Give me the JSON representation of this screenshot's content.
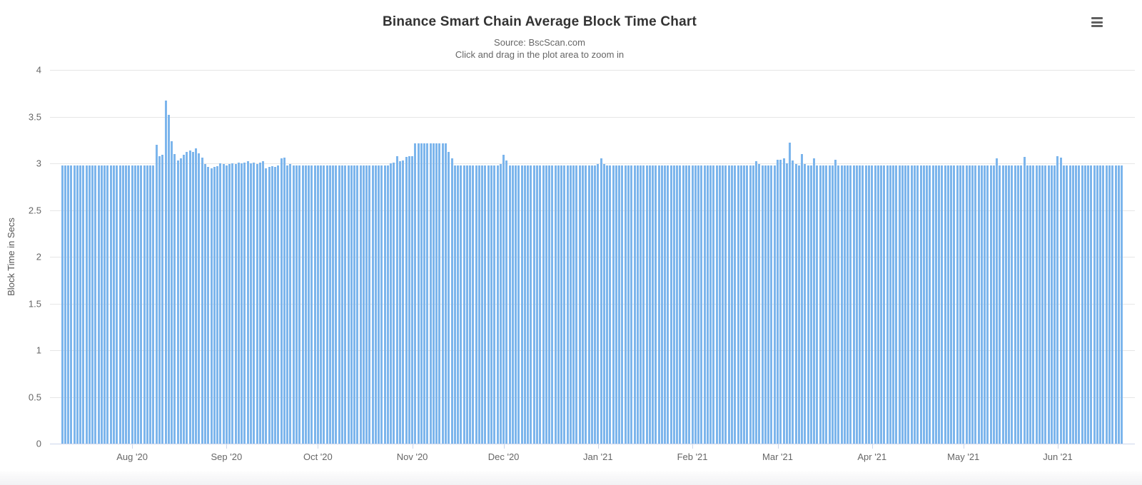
{
  "header": {
    "title": "Binance Smart Chain Average Block Time Chart",
    "subtitle_source": "Source: BscScan.com",
    "subtitle_hint": "Click and drag in the plot area to zoom in"
  },
  "export_menu": {
    "icon": "hamburger-menu-icon"
  },
  "colors": {
    "bar": "#7cb5ec",
    "grid": "#e6e6e6",
    "axis_line": "#ccd6eb",
    "label": "#666666",
    "title": "#333333"
  },
  "chart_data": {
    "type": "bar",
    "title": "Binance Smart Chain Average Block Time Chart",
    "subtitle": [
      "Source: BscScan.com",
      "Click and drag in the plot area to zoom in"
    ],
    "xlabel": "",
    "ylabel": "Block Time in Secs",
    "ylim": [
      0,
      4
    ],
    "grid": true,
    "legend": "none",
    "yticks": [
      "0",
      "0.5",
      "1",
      "1.5",
      "2",
      "2.5",
      "3",
      "3.5",
      "4"
    ],
    "x_unit": "day",
    "start_date": "2020-07-09",
    "end_date": "2021-06-22",
    "month_ticks": [
      {
        "label": "Aug '20",
        "day_index": 23
      },
      {
        "label": "Sep '20",
        "day_index": 54
      },
      {
        "label": "Oct '20",
        "day_index": 84
      },
      {
        "label": "Nov '20",
        "day_index": 115
      },
      {
        "label": "Dec '20",
        "day_index": 145
      },
      {
        "label": "Jan '21",
        "day_index": 176
      },
      {
        "label": "Feb '21",
        "day_index": 207
      },
      {
        "label": "Mar '21",
        "day_index": 235
      },
      {
        "label": "Apr '21",
        "day_index": 266
      },
      {
        "label": "May '21",
        "day_index": 296
      },
      {
        "label": "Jun '21",
        "day_index": 327
      }
    ],
    "values": [
      2.98,
      2.98,
      2.98,
      2.98,
      2.98,
      2.98,
      2.98,
      2.98,
      2.98,
      2.98,
      2.98,
      2.98,
      2.98,
      2.98,
      2.98,
      2.98,
      2.98,
      2.98,
      2.98,
      2.98,
      2.98,
      2.98,
      2.98,
      2.98,
      2.98,
      2.98,
      2.98,
      2.98,
      2.98,
      2.98,
      2.98,
      3.2,
      3.08,
      3.09,
      3.67,
      3.52,
      3.24,
      3.1,
      3.03,
      3.05,
      3.09,
      3.12,
      3.14,
      3.12,
      3.16,
      3.11,
      3.06,
      2.99,
      2.96,
      2.95,
      2.96,
      2.97,
      3.0,
      2.99,
      2.98,
      2.99,
      3.0,
      2.99,
      3.01,
      3.0,
      3.01,
      3.02,
      3.0,
      3.01,
      2.99,
      3.01,
      3.02,
      2.95,
      2.96,
      2.97,
      2.96,
      2.98,
      3.05,
      3.06,
      2.98,
      2.99,
      2.98,
      2.98,
      2.98,
      2.98,
      2.98,
      2.98,
      2.98,
      2.98,
      2.98,
      2.98,
      2.98,
      2.98,
      2.98,
      2.98,
      2.98,
      2.98,
      2.98,
      2.98,
      2.98,
      2.98,
      2.98,
      2.98,
      2.98,
      2.98,
      2.98,
      2.98,
      2.98,
      2.98,
      2.98,
      2.98,
      2.98,
      2.98,
      3.0,
      3.01,
      3.08,
      3.02,
      3.03,
      3.07,
      3.08,
      3.08,
      3.21,
      3.21,
      3.21,
      3.21,
      3.21,
      3.21,
      3.21,
      3.21,
      3.21,
      3.21,
      3.21,
      3.12,
      3.05,
      2.98,
      2.98,
      2.98,
      2.98,
      2.98,
      2.98,
      2.98,
      2.98,
      2.98,
      2.98,
      2.98,
      2.98,
      2.98,
      2.98,
      2.98,
      2.99,
      3.09,
      3.03,
      2.98,
      2.98,
      2.98,
      2.98,
      2.98,
      2.98,
      2.98,
      2.98,
      2.98,
      2.98,
      2.98,
      2.98,
      2.98,
      2.98,
      2.98,
      2.98,
      2.98,
      2.98,
      2.98,
      2.98,
      2.98,
      2.98,
      2.98,
      2.98,
      2.98,
      2.98,
      2.98,
      2.98,
      2.98,
      2.99,
      3.05,
      2.99,
      2.98,
      2.98,
      2.98,
      2.98,
      2.98,
      2.98,
      2.98,
      2.98,
      2.98,
      2.98,
      2.98,
      2.98,
      2.98,
      2.98,
      2.98,
      2.98,
      2.98,
      2.98,
      2.98,
      2.98,
      2.98,
      2.98,
      2.98,
      2.98,
      2.98,
      2.98,
      2.98,
      2.98,
      2.98,
      2.98,
      2.98,
      2.98,
      2.98,
      2.98,
      2.98,
      2.98,
      2.98,
      2.98,
      2.98,
      2.98,
      2.98,
      2.98,
      2.98,
      2.98,
      2.98,
      2.98,
      2.98,
      2.98,
      2.98,
      3.02,
      2.99,
      2.98,
      2.98,
      2.98,
      2.98,
      2.98,
      3.04,
      3.04,
      3.05,
      3.0,
      3.22,
      3.03,
      2.99,
      2.98,
      3.1,
      2.99,
      2.98,
      2.98,
      3.05,
      2.98,
      2.98,
      2.98,
      2.98,
      2.98,
      2.98,
      3.04,
      2.98,
      2.98,
      2.98,
      2.98,
      2.98,
      2.98,
      2.98,
      2.98,
      2.98,
      2.98,
      2.98,
      2.98,
      2.98,
      2.98,
      2.98,
      2.98,
      2.98,
      2.98,
      2.98,
      2.98,
      2.98,
      2.98,
      2.98,
      2.98,
      2.98,
      2.98,
      2.98,
      2.98,
      2.98,
      2.98,
      2.98,
      2.98,
      2.98,
      2.98,
      2.98,
      2.98,
      2.98,
      2.98,
      2.98,
      2.98,
      2.98,
      2.98,
      2.98,
      2.98,
      2.98,
      2.98,
      2.98,
      2.98,
      2.98,
      2.98,
      2.98,
      2.98,
      3.05,
      2.98,
      2.98,
      2.98,
      2.98,
      2.98,
      2.98,
      2.98,
      2.98,
      3.07,
      2.98,
      2.98,
      2.98,
      2.98,
      2.98,
      2.98,
      2.98,
      2.98,
      2.98,
      2.98,
      3.08,
      3.06,
      2.98,
      2.98,
      2.98,
      2.98,
      2.98,
      2.98,
      2.98,
      2.98,
      2.98,
      2.98,
      2.98,
      2.98,
      2.98,
      2.98,
      2.98,
      2.98,
      2.98,
      2.98,
      2.98,
      2.98
    ]
  }
}
